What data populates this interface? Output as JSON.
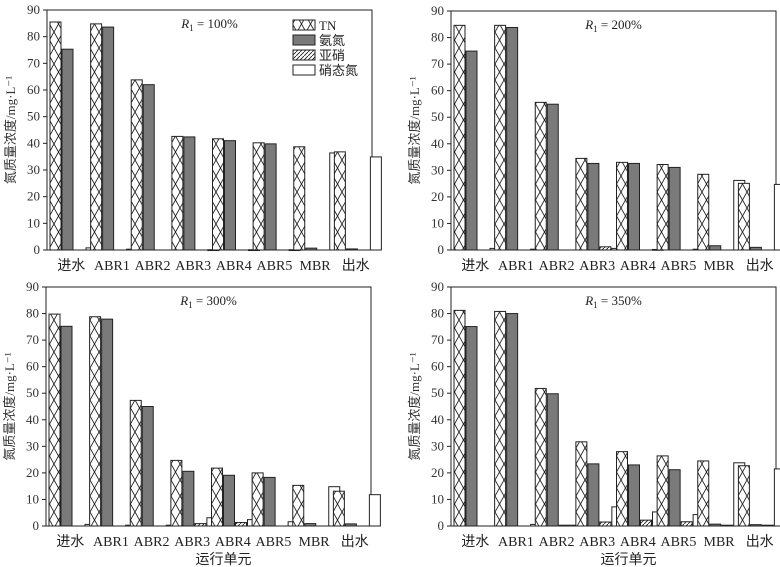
{
  "figure": {
    "legend_position": "top-right (first panel only)"
  },
  "legend": [
    {
      "key": "TN",
      "label": "TN",
      "pattern": "crosshatch"
    },
    {
      "key": "nh4",
      "label": "氨氮",
      "pattern": "solid-gray"
    },
    {
      "key": "no2",
      "label": "亚硝",
      "pattern": "diagonal"
    },
    {
      "key": "no3",
      "label": "硝态氮",
      "pattern": "white"
    }
  ],
  "colors": {
    "nh4_fill": "#7a7a7a",
    "frame": "#222222",
    "hatch": "#222222"
  },
  "chart_data": [
    {
      "type": "bar",
      "title": "",
      "annotation": "R1 = 100%",
      "annotation_parts": {
        "var": "R",
        "sub": "1",
        "rest": " = 100%"
      },
      "xlabel": "",
      "ylabel": "氮质量浓度/mg·L⁻¹",
      "ylim": [
        0,
        90
      ],
      "yticks": [
        0,
        10,
        20,
        30,
        40,
        50,
        60,
        70,
        80,
        90
      ],
      "categories": [
        "进水",
        "ABR1",
        "ABR2",
        "ABR3",
        "ABR4",
        "ABR5",
        "MBR",
        "出水"
      ],
      "series": [
        {
          "name": "TN",
          "values": [
            85.5,
            84.8,
            63.8,
            42.6,
            41.7,
            40.2,
            38.7,
            36.8
          ]
        },
        {
          "name": "氨氮",
          "values": [
            75.3,
            83.6,
            62.0,
            42.4,
            41.0,
            39.8,
            0.7,
            0.4
          ]
        },
        {
          "name": "亚硝",
          "values": [
            0,
            0,
            0,
            0,
            0,
            0,
            0,
            0
          ]
        },
        {
          "name": "硝态氮",
          "values": [
            0.8,
            0.3,
            0,
            0.1,
            0.1,
            0.1,
            36.4,
            34.9
          ]
        }
      ],
      "show_legend": true
    },
    {
      "type": "bar",
      "title": "",
      "annotation": "R1 = 200%",
      "annotation_parts": {
        "var": "R",
        "sub": "1",
        "rest": " = 200%"
      },
      "xlabel": "",
      "ylabel": "氮质量浓度/mg·L⁻¹",
      "ylim": [
        0,
        90
      ],
      "yticks": [
        0,
        10,
        20,
        30,
        40,
        50,
        60,
        70,
        80,
        90
      ],
      "categories": [
        "进水",
        "ABR1",
        "ABR2",
        "ABR3",
        "ABR4",
        "ABR5",
        "MBR",
        "出水"
      ],
      "series": [
        {
          "name": "TN",
          "values": [
            84.6,
            84.6,
            55.6,
            34.5,
            33.0,
            32.2,
            28.5,
            25.1
          ]
        },
        {
          "name": "氨氮",
          "values": [
            74.9,
            83.8,
            54.9,
            32.6,
            32.6,
            31.1,
            1.6,
            1.0
          ]
        },
        {
          "name": "亚硝",
          "values": [
            0,
            0,
            0,
            1.2,
            0,
            0,
            0,
            0
          ]
        },
        {
          "name": "硝态氮",
          "values": [
            0.6,
            0.3,
            0,
            0.6,
            0.2,
            0.3,
            26.2,
            24.7
          ]
        }
      ],
      "show_legend": false
    },
    {
      "type": "bar",
      "title": "",
      "annotation": "R1 = 300%",
      "annotation_parts": {
        "var": "R",
        "sub": "1",
        "rest": " = 300%"
      },
      "xlabel": "运行单元",
      "ylabel": "氮质量浓度/mg·L⁻¹",
      "ylim": [
        0,
        90
      ],
      "yticks": [
        0,
        10,
        20,
        30,
        40,
        50,
        60,
        70,
        80,
        90
      ],
      "categories": [
        "进水",
        "ABR1",
        "ABR2",
        "ABR3",
        "ABR4",
        "ABR5",
        "MBR",
        "出水"
      ],
      "series": [
        {
          "name": "TN",
          "values": [
            79.8,
            78.8,
            47.3,
            24.7,
            21.8,
            20.0,
            15.3,
            13.1
          ]
        },
        {
          "name": "氨氮",
          "values": [
            75.2,
            77.9,
            45.0,
            20.6,
            19.1,
            18.3,
            0.9,
            0.8
          ]
        },
        {
          "name": "亚硝",
          "values": [
            0,
            0,
            0,
            0.9,
            1.3,
            0,
            0,
            0
          ]
        },
        {
          "name": "硝态氮",
          "values": [
            0.6,
            0.3,
            0.3,
            3.1,
            2.4,
            1.6,
            14.8,
            11.8
          ]
        }
      ],
      "show_legend": false
    },
    {
      "type": "bar",
      "title": "",
      "annotation": "R1 = 350%",
      "annotation_parts": {
        "var": "R",
        "sub": "1",
        "rest": " = 350%"
      },
      "xlabel": "运行单元",
      "ylabel": "氮质量浓度/mg·L⁻¹",
      "ylim": [
        0,
        90
      ],
      "yticks": [
        0,
        10,
        20,
        30,
        40,
        50,
        60,
        70,
        80,
        90
      ],
      "categories": [
        "进水",
        "ABR1",
        "ABR2",
        "ABR3",
        "ABR4",
        "ABR5",
        "MBR",
        "出水"
      ],
      "series": [
        {
          "name": "TN",
          "values": [
            81.2,
            80.8,
            51.8,
            31.7,
            28.0,
            26.4,
            24.5,
            22.7
          ]
        },
        {
          "name": "氨氮",
          "values": [
            75.1,
            80.0,
            49.8,
            23.4,
            23.0,
            21.2,
            0.7,
            0.5
          ]
        },
        {
          "name": "亚硝",
          "values": [
            0,
            0,
            0.3,
            1.5,
            2.2,
            1.6,
            0.3,
            0.3
          ]
        },
        {
          "name": "硝态氮",
          "values": [
            0,
            0.6,
            0.3,
            7.2,
            5.3,
            4.3,
            23.8,
            21.5
          ]
        }
      ],
      "show_legend": false
    }
  ]
}
